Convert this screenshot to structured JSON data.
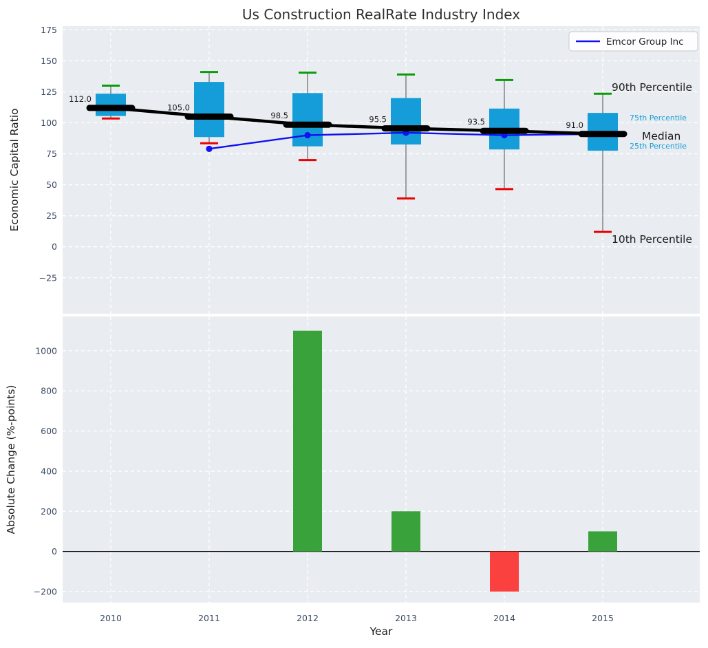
{
  "colors": {
    "plot_background": "#e9edf1",
    "grid": "#ffffff",
    "tick_label": "#3b4a63",
    "text_dark": "#1c1c1c",
    "title": "#2e2e2e",
    "box_fill": "#149dd8",
    "percentile_label_cyan": "#149dd8",
    "cap_90th_green": "#089c08",
    "cap_10th_red": "#ee0000",
    "whisker": "#666666",
    "median_black": "#000000",
    "emcor_line": "#1010f0",
    "bar_positive": "#3aa23a",
    "bar_negative": "#fb4040",
    "legend_background": "#fdfdff",
    "legend_border": "#c9c9c9"
  },
  "chart_data": [
    {
      "type": "box",
      "title": "Us Construction RealRate Industry Index",
      "ylabel": "Economic Capital Ratio",
      "categories": [
        "2010",
        "2011",
        "2012",
        "2013",
        "2014",
        "2015"
      ],
      "ylim": [
        -54,
        178
      ],
      "yticks": [
        175,
        150,
        125,
        100,
        75,
        50,
        25,
        0,
        -25
      ],
      "ytick_labels": [
        "175",
        "150",
        "125",
        "100",
        "75",
        "50",
        "25",
        "0",
        "−25"
      ],
      "grid": true,
      "series": {
        "p90": [
          130,
          141,
          140.5,
          139,
          134.5,
          123.5
        ],
        "p75": [
          123.5,
          133,
          124,
          120,
          111.5,
          108
        ],
        "median": [
          112,
          105,
          98.5,
          95.5,
          93.5,
          91
        ],
        "p25": [
          105.5,
          88.5,
          81,
          82.5,
          78.5,
          77.5
        ],
        "p10": [
          103.5,
          83.5,
          70,
          39,
          46.5,
          12
        ]
      },
      "median_labels": [
        "112.0",
        "105.0",
        "98.5",
        "95.5",
        "93.5",
        "91.0"
      ],
      "line_series": {
        "name": "Emcor Group Inc",
        "values": [
          null,
          79,
          90,
          92,
          90,
          91
        ]
      },
      "legend": {
        "position": "upper right",
        "entries": [
          "Emcor Group Inc"
        ]
      },
      "annotations": [
        {
          "text": "90th Percentile",
          "color": "#1c1c1c"
        },
        {
          "text": "75th Percentile",
          "color": "#149dd8"
        },
        {
          "text": "Median",
          "color": "#1c1c1c"
        },
        {
          "text": "25th Percentile",
          "color": "#149dd8"
        },
        {
          "text": "10th Percentile",
          "color": "#1c1c1c"
        }
      ]
    },
    {
      "type": "bar",
      "ylabel": "Absolute Change (%-points)",
      "xlabel": "Year",
      "categories": [
        "2010",
        "2011",
        "2012",
        "2013",
        "2014",
        "2015"
      ],
      "values": [
        null,
        null,
        1100,
        200,
        -200,
        100
      ],
      "ylim": [
        -255,
        1171
      ],
      "yticks": [
        1000,
        800,
        600,
        400,
        200,
        0,
        -200
      ],
      "ytick_labels": [
        "1000",
        "800",
        "600",
        "400",
        "200",
        "0",
        "−200"
      ],
      "grid": true
    }
  ]
}
